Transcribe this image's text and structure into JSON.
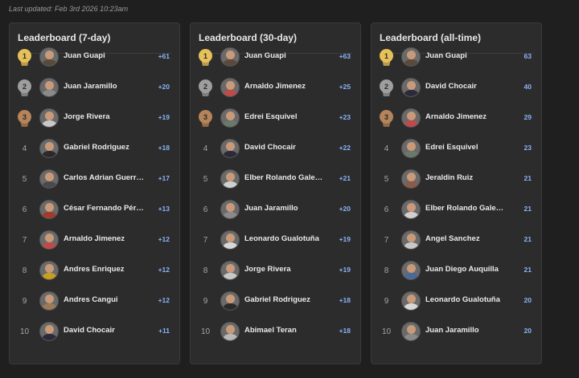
{
  "last_updated": "Last updated: Feb 3rd 2026 10:23am",
  "colors": {
    "gold": "#e6c15a",
    "silver": "#9e9e9e",
    "bronze": "#b5845a",
    "score": "#8ab4f8"
  },
  "boards": [
    {
      "title": "Leaderboard (7-day)",
      "rows": [
        {
          "rank": "1",
          "name": "Juan Guapi",
          "score": "+61",
          "avatar": "#5a4a3a"
        },
        {
          "rank": "2",
          "name": "Juan Jaramillo",
          "score": "+20",
          "avatar": "#8a8a8a"
        },
        {
          "rank": "3",
          "name": "Jorge Rivera",
          "score": "+19",
          "avatar": "#c8c8c8"
        },
        {
          "rank": "4",
          "name": "Gabriel Rodriguez",
          "score": "+18",
          "avatar": "#2a2a2a"
        },
        {
          "rank": "5",
          "name": "Carlos Adrian Guerrero",
          "score": "+17",
          "avatar": "#4a4a4a"
        },
        {
          "rank": "6",
          "name": "César Fernando Pérez",
          "score": "+13",
          "avatar": "#a33a2a"
        },
        {
          "rank": "7",
          "name": "Arnaldo Jimenez",
          "score": "+12",
          "avatar": "#c04a4a"
        },
        {
          "rank": "8",
          "name": "Andres Enriquez",
          "score": "+12",
          "avatar": "#c8a020"
        },
        {
          "rank": "9",
          "name": "Andres Cangui",
          "score": "+12",
          "avatar": "#9a7a5a"
        },
        {
          "rank": "10",
          "name": "David Chocair",
          "score": "+11",
          "avatar": "#2a2a3a"
        }
      ]
    },
    {
      "title": "Leaderboard (30-day)",
      "rows": [
        {
          "rank": "1",
          "name": "Juan Guapi",
          "score": "+63",
          "avatar": "#5a4a3a"
        },
        {
          "rank": "2",
          "name": "Arnaldo Jimenez",
          "score": "+25",
          "avatar": "#c04a4a"
        },
        {
          "rank": "3",
          "name": "Edrei Esquivel",
          "score": "+23",
          "avatar": "#6a7a6a"
        },
        {
          "rank": "4",
          "name": "David Chocair",
          "score": "+22",
          "avatar": "#2a2a3a"
        },
        {
          "rank": "5",
          "name": "Elber Rolando Galeano",
          "score": "+21",
          "avatar": "#d0d0d0"
        },
        {
          "rank": "6",
          "name": "Juan Jaramillo",
          "score": "+20",
          "avatar": "#8a8a8a"
        },
        {
          "rank": "7",
          "name": "Leonardo Gualotuña",
          "score": "+19",
          "avatar": "#d8d8d8"
        },
        {
          "rank": "8",
          "name": "Jorge Rivera",
          "score": "+19",
          "avatar": "#c8c8c8"
        },
        {
          "rank": "9",
          "name": "Gabriel Rodriguez",
          "score": "+18",
          "avatar": "#2a2a2a"
        },
        {
          "rank": "10",
          "name": "Abimael Teran",
          "score": "+18",
          "avatar": "#b8b8b8"
        }
      ]
    },
    {
      "title": "Leaderboard (all-time)",
      "rows": [
        {
          "rank": "1",
          "name": "Juan Guapi",
          "score": "63",
          "avatar": "#5a4a3a"
        },
        {
          "rank": "2",
          "name": "David Chocair",
          "score": "40",
          "avatar": "#2a2a3a"
        },
        {
          "rank": "3",
          "name": "Arnaldo Jimenez",
          "score": "29",
          "avatar": "#c04a4a"
        },
        {
          "rank": "4",
          "name": "Edrei Esquivel",
          "score": "23",
          "avatar": "#6a7a6a"
        },
        {
          "rank": "5",
          "name": "Jeraldin Ruiz",
          "score": "21",
          "avatar": "#8a5a4a"
        },
        {
          "rank": "6",
          "name": "Elber Rolando Galeano",
          "score": "21",
          "avatar": "#d0d0d0"
        },
        {
          "rank": "7",
          "name": "Angel Sanchez",
          "score": "21",
          "avatar": "#c8c8c8"
        },
        {
          "rank": "8",
          "name": "Juan Diego Auquilla",
          "score": "21",
          "avatar": "#4a6a9a"
        },
        {
          "rank": "9",
          "name": "Leonardo Gualotuña",
          "score": "20",
          "avatar": "#d8d8d8"
        },
        {
          "rank": "10",
          "name": "Juan Jaramillo",
          "score": "20",
          "avatar": "#8a8a8a"
        }
      ]
    }
  ]
}
